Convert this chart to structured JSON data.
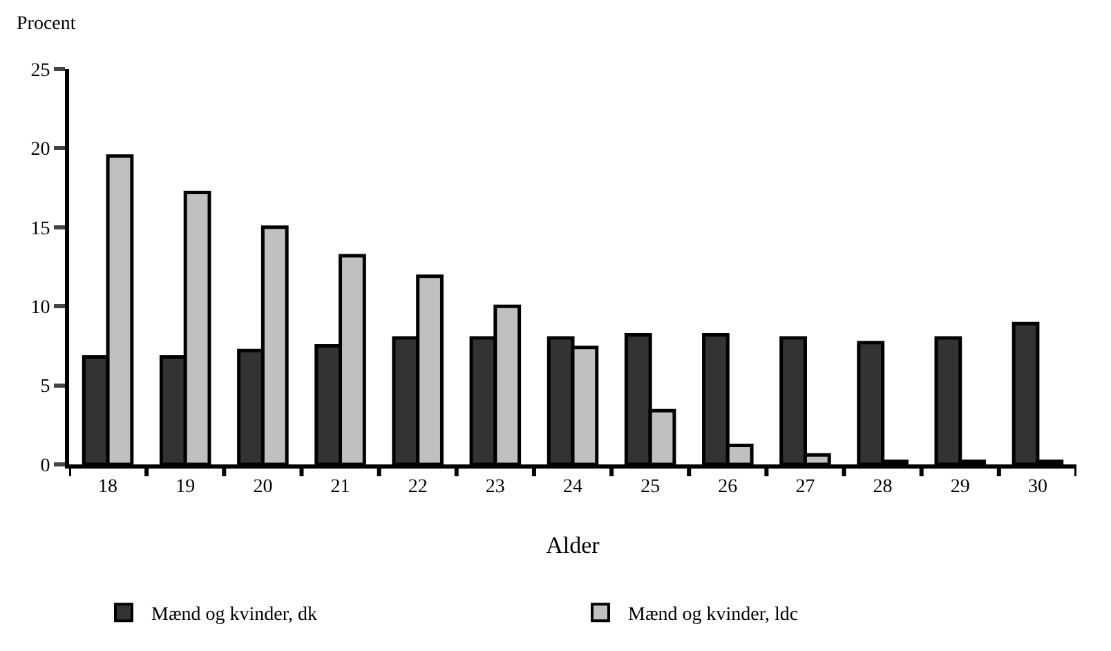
{
  "chart_data": {
    "type": "bar",
    "ylabel": "Procent",
    "xlabel": "Alder",
    "categories": [
      "18",
      "19",
      "20",
      "21",
      "22",
      "23",
      "24",
      "25",
      "26",
      "27",
      "28",
      "29",
      "30"
    ],
    "series": [
      {
        "name": "Mænd og kvinder, dk",
        "color": "#333333",
        "values": [
          6.8,
          6.8,
          7.2,
          7.5,
          8.0,
          8.0,
          8.0,
          8.2,
          8.2,
          8.0,
          7.7,
          8.0,
          8.9
        ]
      },
      {
        "name": "Mænd og kvinder, ldc",
        "color": "#c0c0c0",
        "values": [
          19.5,
          17.2,
          15.0,
          13.2,
          11.9,
          10.0,
          7.4,
          3.4,
          1.2,
          0.6,
          0.2,
          0.2,
          0.2
        ]
      }
    ],
    "ylim": [
      0,
      25
    ],
    "yticks": [
      0,
      5,
      10,
      15,
      20,
      25
    ],
    "legend": "bottom"
  }
}
